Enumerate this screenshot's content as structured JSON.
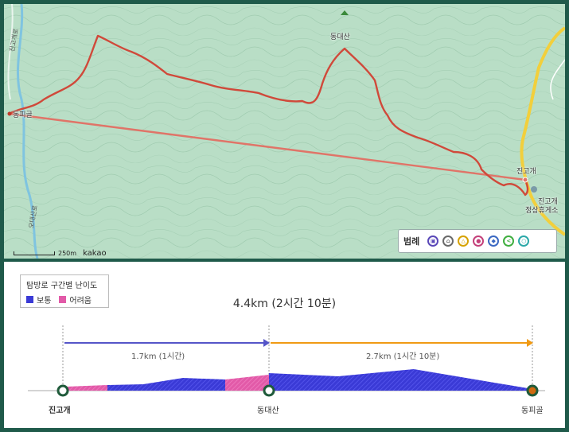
{
  "map": {
    "places": {
      "dongpigol": "동피골",
      "dongdaesan": "동대산",
      "jingogae": "진고개",
      "rest_area_line1": "진고개",
      "rest_area_line2": "정상휴게소"
    },
    "roads": {
      "road_left": "오대산로",
      "road_top": "진고개로"
    },
    "scale_text": "250m",
    "brand": "kakao",
    "legend": {
      "title": "범례",
      "icons": [
        "bus-icon",
        "shelter-icon",
        "toilet-icon",
        "person-icon",
        "car-icon",
        "share-icon",
        "water-icon"
      ],
      "colors": [
        "#5a48b8",
        "#6a6a6a",
        "#d6a200",
        "#c4407a",
        "#3a68c2",
        "#3fae3f",
        "#2aa8a8"
      ]
    },
    "route_color": "#d0493a",
    "line_color": "#e07468"
  },
  "profile": {
    "difficulty_title": "탐방로 구간별 난이도",
    "legend_normal": "보통",
    "legend_hard": "어려움",
    "color_normal": "#3a3ad6",
    "color_hard": "#e25aa8",
    "total": "4.4km (2시간 10분)",
    "segments": [
      {
        "label": "1.7km (1시간)",
        "color": "#5555c8"
      },
      {
        "label": "2.7km (1시간 10분)",
        "color": "#f09a14"
      }
    ],
    "points": [
      {
        "label": "진고개",
        "bold": true
      },
      {
        "label": "동대산",
        "bold": false
      },
      {
        "label": "동피골",
        "bold": false
      }
    ]
  }
}
